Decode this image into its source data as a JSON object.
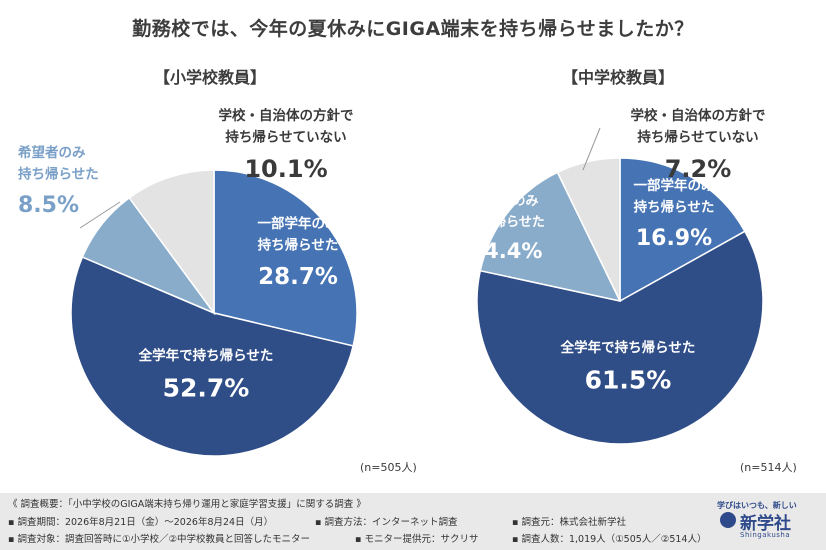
{
  "title": "勤務校では、今年の夏休みにGIGA端末を持ち帰らせましたか？",
  "colors": {
    "all_grades": "#2f4d87",
    "some_grades": "#4573b3",
    "requested": "#8aaccb",
    "not_taken": "#e3e3e3",
    "outline": "#ffffff"
  },
  "chart_data": [
    {
      "type": "pie",
      "title": "【小学校教員】",
      "n_label": "(n=505人)",
      "slices": [
        {
          "label": "一部学年のみ持ち帰らせた",
          "label_lines": [
            "一部学年のみ",
            "持ち帰らせた"
          ],
          "value": 28.7,
          "display": "28.7%",
          "color": "#4573b3"
        },
        {
          "label": "全学年で持ち帰らせた",
          "label_lines": [
            "全学年で持ち帰らせた"
          ],
          "value": 52.7,
          "display": "52.7%",
          "color": "#2f4d87"
        },
        {
          "label": "希望者のみ持ち帰らせた",
          "label_lines": [
            "希望者のみ",
            "持ち帰らせた"
          ],
          "value": 8.5,
          "display": "8.5%",
          "color": "#8aaccb"
        },
        {
          "label": "学校・自治体の方針で持ち帰らせていない",
          "label_lines": [
            "学校・自治体の方針で",
            "持ち帰らせていない"
          ],
          "value": 10.1,
          "display": "10.1%",
          "color": "#e3e3e3"
        }
      ]
    },
    {
      "type": "pie",
      "title": "【中学校教員】",
      "n_label": "(n=514人)",
      "slices": [
        {
          "label": "一部学年のみ持ち帰らせた",
          "label_lines": [
            "一部学年のみ",
            "持ち帰らせた"
          ],
          "value": 16.9,
          "display": "16.9%",
          "color": "#4573b3"
        },
        {
          "label": "全学年で持ち帰らせた",
          "label_lines": [
            "全学年で持ち帰らせた"
          ],
          "value": 61.5,
          "display": "61.5%",
          "color": "#2f4d87"
        },
        {
          "label": "希望者のみ持ち帰らせた",
          "label_lines": [
            "希望者のみ",
            "持ち帰らせた"
          ],
          "value": 14.4,
          "display": "14.4%",
          "color": "#8aaccb"
        },
        {
          "label": "学校・自治体の方針で持ち帰らせていない",
          "label_lines": [
            "学校・自治体の方針で",
            "持ち帰らせていない"
          ],
          "value": 7.2,
          "display": "7.2%",
          "color": "#e3e3e3"
        }
      ]
    }
  ],
  "footer": {
    "line1": "《 調査概要：「小中学校のGIGA端末持ち帰り運用と家庭学習支援」に関する調査 》",
    "period": "▪ 調査期間：2026年8月21日（金）～2026年8月24日（月）",
    "method": "▪ 調査方法：インターネット調査",
    "source": "▪ 調査元：株式会社新学社",
    "target": "▪ 調査対象：調査回答時に①小学校／②中学校教員と回答したモニター",
    "monitor": "▪ モニター提供元：サクリサ",
    "count": "▪ 調査人数：1,019人（①505人／②514人）"
  },
  "logo": {
    "tagline": "学びはいつも、新しい",
    "name": "新学社",
    "sub": "Shingakusha"
  }
}
